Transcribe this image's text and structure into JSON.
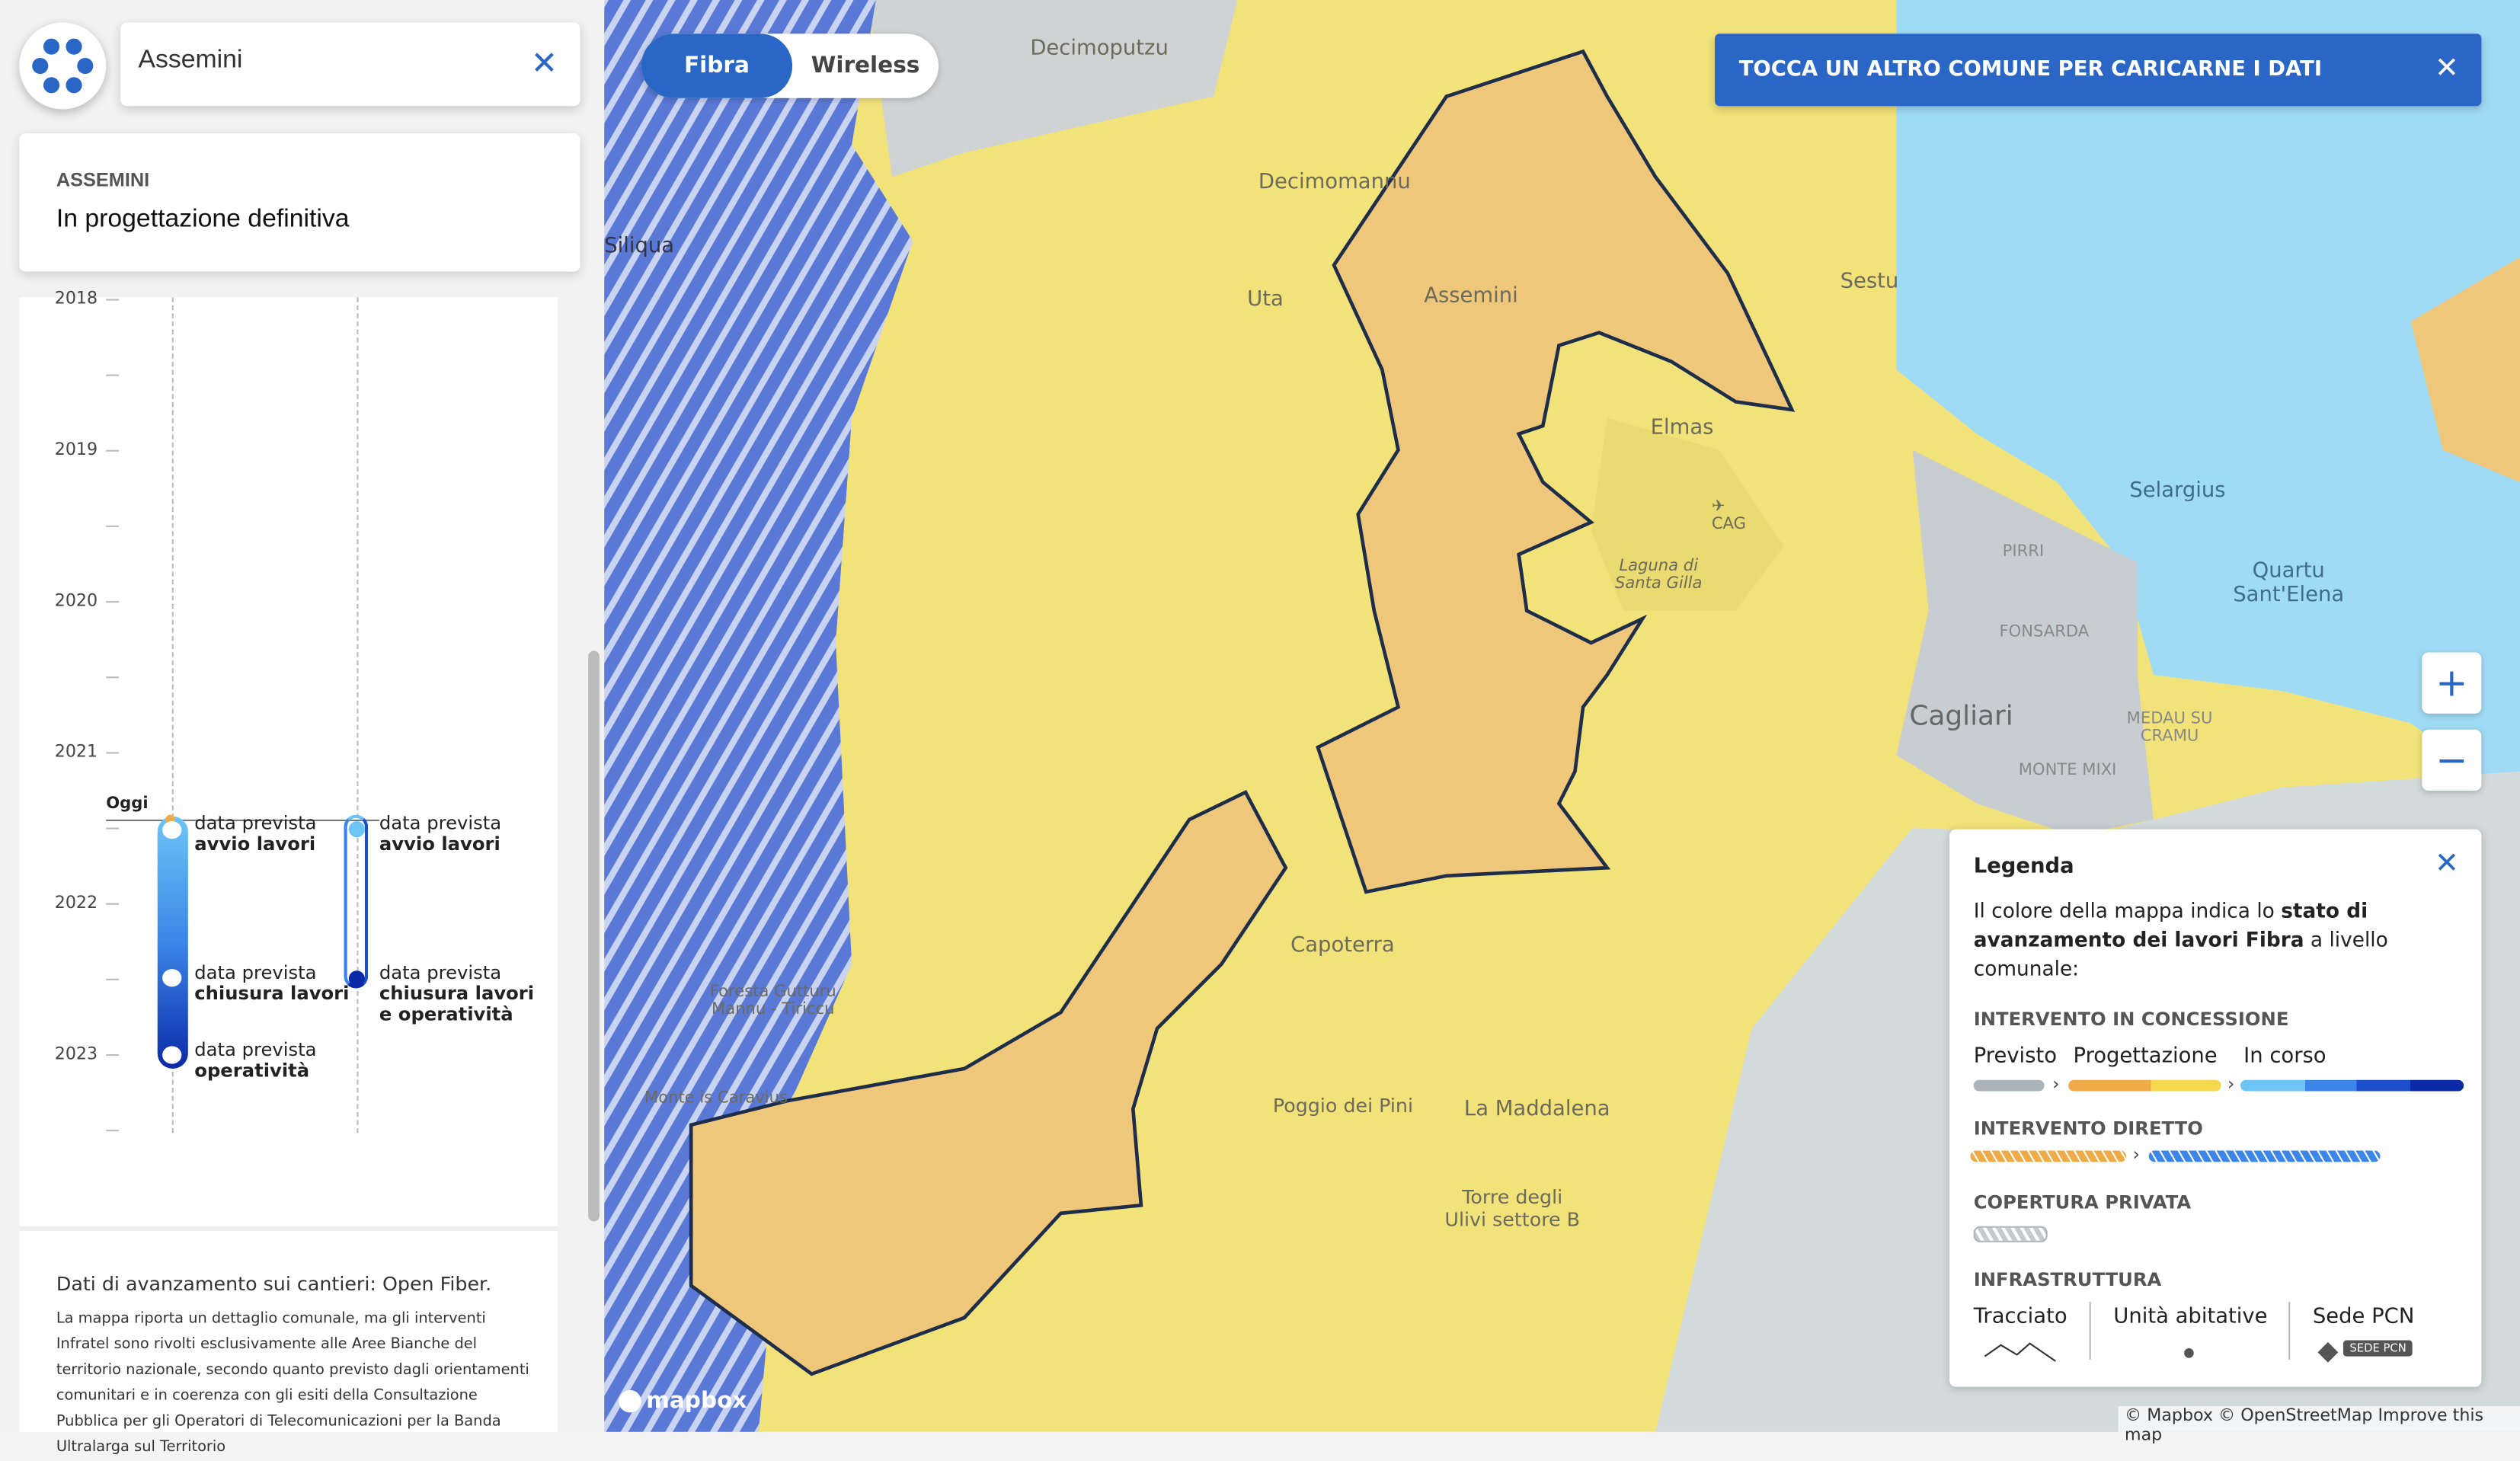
{
  "search": {
    "value": "Assemini",
    "clear_icon": "close-icon"
  },
  "info": {
    "comune": "ASSEMINI",
    "status": "In progettazione definitiva"
  },
  "timeline": {
    "years": [
      "2018",
      "2019",
      "2020",
      "2021",
      "2022",
      "2023"
    ],
    "today_label": "Oggi",
    "col1": [
      {
        "pre": "data prevista",
        "bold": "avvio lavori"
      },
      {
        "pre": "data prevista",
        "bold": "chiusura lavori"
      },
      {
        "pre": "data prevista",
        "bold": "operatività"
      }
    ],
    "col2": [
      {
        "pre": "data prevista",
        "bold": "avvio lavori"
      },
      {
        "pre": "data prevista",
        "bold": "chiusura lavori",
        "bold2": "e operatività"
      }
    ]
  },
  "footer": {
    "title": "Dati di avanzamento sui cantieri: Open Fiber.",
    "text": "La mappa riporta un dettaglio comunale, ma gli interventi Infratel sono rivolti esclusivamente alle Aree Bianche del territorio nazionale, secondo quanto previsto dagli orientamenti comunitari e in coerenza con gli esiti della Consultazione Pubblica per gli Operatori di Telecomunicazioni per la Banda Ultralarga sul Territorio"
  },
  "toggle": {
    "options": [
      "Fibra",
      "Wireless"
    ],
    "selected": "Fibra"
  },
  "banner": {
    "text": "TOCCA UN ALTRO COMUNE PER CARICARNE I DATI"
  },
  "zoom": {
    "in": "+",
    "out": "−"
  },
  "map_labels": {
    "decimoputzu": "Decimoputzu",
    "decimomannu": "Decimomannu",
    "siliqua": "Siliqua",
    "uta": "Uta",
    "assemini": "Assemini",
    "sestu": "Sestu",
    "elmas": "Elmas",
    "cag": "CAG",
    "laguna": "Laguna di Santa Gilla",
    "selargius": "Selargius",
    "pirri": "PIRRI",
    "quartu": "Quartu Sant'Elena",
    "fonsarda": "FONSARDA",
    "cagliari": "Cagliari",
    "medau": "MEDAU SU CRAMU",
    "montemixi": "MONTE MIXI",
    "capoterra": "Capoterra",
    "foresta": "Foresta Gutturu Mannu - Tiriccu",
    "monte": "Monte is Caravius",
    "poggio": "Poggio dei Pini",
    "maddalena": "La Maddalena",
    "torre": "Torre degli Ulivi settore B"
  },
  "legend": {
    "title": "Legenda",
    "desc_pre": "Il colore della mappa indica lo ",
    "desc_bold": "stato di avanzamento dei lavori Fibra",
    "desc_post": " a livello comunale:",
    "sec1": "INTERVENTO IN CONCESSIONE",
    "previsto": "Previsto",
    "progettazione": "Progettazione",
    "incorso": "In corso",
    "sec2": "INTERVENTO DIRETTO",
    "sec3": "COPERTURA PRIVATA",
    "sec4": "INFRASTRUTTURA",
    "tracciato": "Tracciato",
    "unita": "Unità abitative",
    "sede": "Sede PCN",
    "sede_badge": "SEDE PCN",
    "colors": {
      "previsto": "#aab4b9",
      "prog1": "#efab45",
      "prog2": "#f4d84e",
      "corso1": "#6cc5f5",
      "corso2": "#3b86e8",
      "corso3": "#1d4fcc",
      "corso4": "#0b2aa8"
    }
  },
  "brand": {
    "mapbox": "mapbox"
  },
  "attribution": "© Mapbox © OpenStreetMap Improve this map"
}
